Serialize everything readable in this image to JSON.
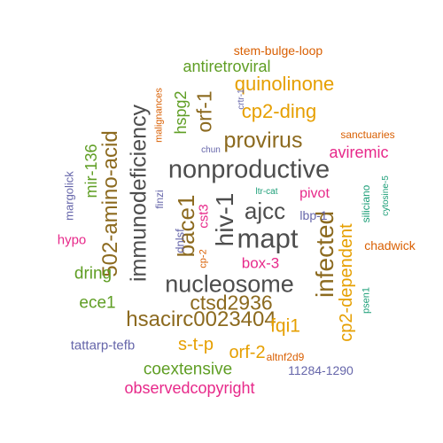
{
  "colors": {
    "dark_gray": "#4d4d4d",
    "brown": "#8c6a1f",
    "gold": "#e69f00",
    "olive_green": "#5f9e24",
    "magenta": "#e7298a",
    "orange_red": "#d95f02",
    "purple": "#6666aa",
    "teal": "#1b9e77"
  },
  "words": [
    {
      "text": "nonproductive",
      "color": "dark_gray",
      "orientation": "horizontal"
    },
    {
      "text": "nucleosome",
      "color": "dark_gray",
      "orientation": "horizontal"
    },
    {
      "text": "mapt",
      "color": "dark_gray",
      "orientation": "horizontal"
    },
    {
      "text": "immunodeficiency",
      "color": "dark_gray",
      "orientation": "vertical"
    },
    {
      "text": "hiv-1",
      "color": "dark_gray",
      "orientation": "vertical"
    },
    {
      "text": "infected",
      "color": "brown",
      "orientation": "vertical"
    },
    {
      "text": "hsacirc0023404",
      "color": "brown",
      "orientation": "horizontal"
    },
    {
      "text": "502-amino-acid",
      "color": "brown",
      "orientation": "vertical"
    },
    {
      "text": "bace1",
      "color": "brown",
      "orientation": "vertical"
    },
    {
      "text": "provirus",
      "color": "brown",
      "orientation": "horizontal"
    },
    {
      "text": "ctsd2936",
      "color": "brown",
      "orientation": "horizontal"
    },
    {
      "text": "ajcc",
      "color": "dark_gray",
      "orientation": "horizontal"
    },
    {
      "text": "orf-1",
      "color": "brown",
      "orientation": "vertical"
    },
    {
      "text": "cp2-ding",
      "color": "gold",
      "orientation": "horizontal"
    },
    {
      "text": "quinolinone",
      "color": "gold",
      "orientation": "horizontal"
    },
    {
      "text": "cp2-dependent",
      "color": "gold",
      "orientation": "vertical"
    },
    {
      "text": "fqi1",
      "color": "gold",
      "orientation": "horizontal"
    },
    {
      "text": "s-t-p",
      "color": "gold",
      "orientation": "horizontal"
    },
    {
      "text": "orf-2",
      "color": "gold",
      "orientation": "horizontal"
    },
    {
      "text": "hspg2",
      "color": "olive_green",
      "orientation": "vertical"
    },
    {
      "text": "antiretroviral",
      "color": "olive_green",
      "orientation": "horizontal"
    },
    {
      "text": "mir-136",
      "color": "olive_green",
      "orientation": "vertical"
    },
    {
      "text": "dring",
      "color": "olive_green",
      "orientation": "horizontal"
    },
    {
      "text": "ece1",
      "color": "olive_green",
      "orientation": "horizontal"
    },
    {
      "text": "coextensive",
      "color": "olive_green",
      "orientation": "horizontal"
    },
    {
      "text": "observedcopyright",
      "color": "magenta",
      "orientation": "horizontal"
    },
    {
      "text": "aviremic",
      "color": "magenta",
      "orientation": "horizontal"
    },
    {
      "text": "box-3",
      "color": "magenta",
      "orientation": "horizontal"
    },
    {
      "text": "cst3",
      "color": "magenta",
      "orientation": "vertical"
    },
    {
      "text": "pivot",
      "color": "magenta",
      "orientation": "horizontal"
    },
    {
      "text": "hypo",
      "color": "magenta",
      "orientation": "horizontal"
    },
    {
      "text": "stem-bulge-loop",
      "color": "orange_red",
      "orientation": "horizontal"
    },
    {
      "text": "malignances",
      "color": "orange_red",
      "orientation": "vertical"
    },
    {
      "text": "sanctuaries",
      "color": "orange_red",
      "orientation": "horizontal"
    },
    {
      "text": "chadwick",
      "color": "orange_red",
      "orientation": "horizontal"
    },
    {
      "text": "altnf2d9",
      "color": "orange_red",
      "orientation": "horizontal"
    },
    {
      "text": "cp-2",
      "color": "orange_red",
      "orientation": "vertical"
    },
    {
      "text": "tattarp-tefb",
      "color": "purple",
      "orientation": "horizontal"
    },
    {
      "text": "11284-1290",
      "color": "purple",
      "orientation": "horizontal"
    },
    {
      "text": "margolick",
      "color": "purple",
      "orientation": "vertical"
    },
    {
      "text": "lbp-1",
      "color": "purple",
      "orientation": "horizontal"
    },
    {
      "text": "dnlsf",
      "color": "purple",
      "orientation": "vertical"
    },
    {
      "text": "finzi",
      "color": "purple",
      "orientation": "vertical"
    },
    {
      "text": "chun",
      "color": "purple",
      "orientation": "horizontal"
    },
    {
      "text": "crtr-1",
      "color": "purple",
      "orientation": "vertical"
    },
    {
      "text": "siliciano",
      "color": "teal",
      "orientation": "vertical"
    },
    {
      "text": "cytosine-5",
      "color": "teal",
      "orientation": "vertical"
    },
    {
      "text": "psen1",
      "color": "teal",
      "orientation": "vertical"
    },
    {
      "text": "ltr-cat",
      "color": "teal",
      "orientation": "horizontal"
    }
  ]
}
